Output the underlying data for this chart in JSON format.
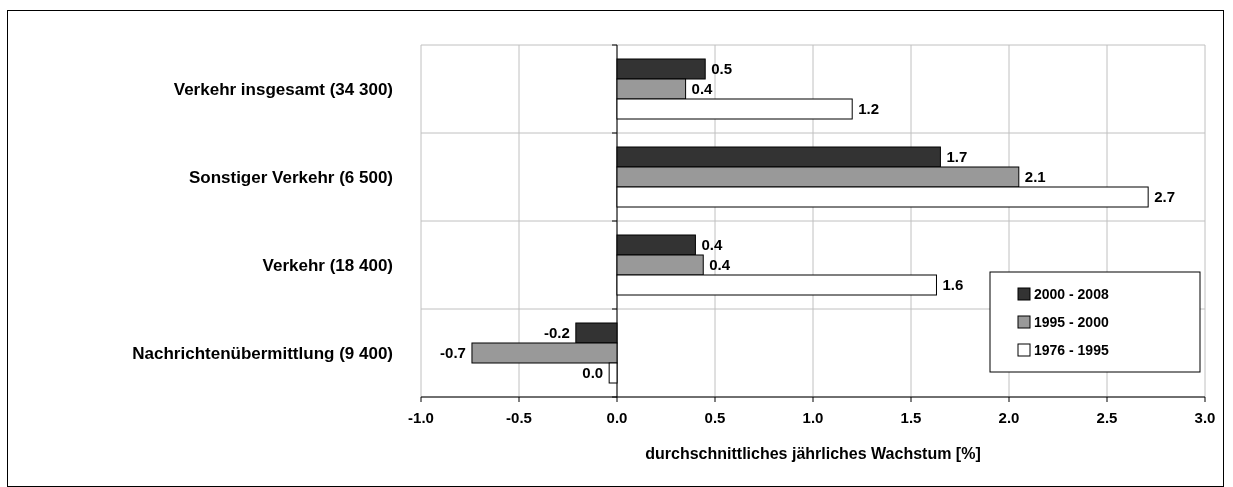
{
  "chart_data": {
    "type": "bar",
    "orientation": "horizontal",
    "xlabel": "durchschnittliches jährliches Wachstum [%]",
    "categories": [
      "Verkehr insgesamt (34 300)",
      "Sonstiger Verkehr (6 500)",
      "Verkehr (18 400)",
      "Nachrichtenübermittlung (9 400)"
    ],
    "series": [
      {
        "name": "2000 - 2008",
        "color": "#333333",
        "values": [
          0.45,
          1.65,
          0.4,
          -0.21
        ],
        "value_labels": [
          "0.5",
          "1.7",
          "0.4",
          "-0.2"
        ]
      },
      {
        "name": "1995 - 2000",
        "color": "#999999",
        "values": [
          0.35,
          2.05,
          0.44,
          -0.74
        ],
        "value_labels": [
          "0.4",
          "2.1",
          "0.4",
          "-0.7"
        ]
      },
      {
        "name": "1976 - 1995",
        "color": "#ffffff",
        "values": [
          1.2,
          2.71,
          1.63,
          -0.04
        ],
        "value_labels": [
          "1.2",
          "2.7",
          "1.6",
          "0.0"
        ]
      }
    ],
    "xlim": [
      -1,
      3
    ],
    "xticks": [
      {
        "value": -1,
        "label": "-1.0"
      },
      {
        "value": -0.5,
        "label": "-0.5"
      },
      {
        "value": 0,
        "label": "0.0"
      },
      {
        "value": 0.5,
        "label": "0.5"
      },
      {
        "value": 1,
        "label": "1.0"
      },
      {
        "value": 1.5,
        "label": "1.5"
      },
      {
        "value": 2,
        "label": "2.0"
      },
      {
        "value": 2.5,
        "label": "2.5"
      },
      {
        "value": 3,
        "label": "3.0"
      }
    ],
    "grid": true,
    "legend": "bottom right"
  }
}
